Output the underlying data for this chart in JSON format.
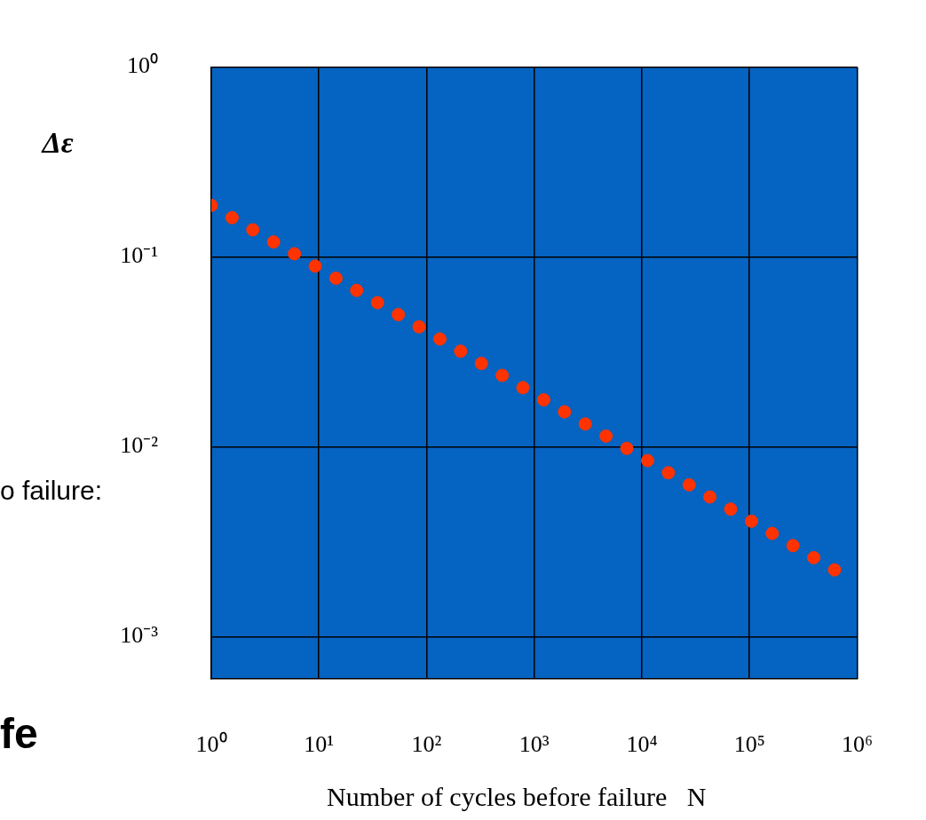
{
  "chart_data": {
    "type": "scatter",
    "xlabel": "Number of cycles before failure   N",
    "ylabel": "Δε",
    "log": "xy",
    "grid": true,
    "legend": false,
    "marker": "circle",
    "xlim": [
      1,
      1000000
    ],
    "ylim": [
      0.00063,
      1
    ],
    "xticks": [
      {
        "value": 1,
        "label": "10⁰"
      },
      {
        "value": 10,
        "label": "10¹"
      },
      {
        "value": 100,
        "label": "10²"
      },
      {
        "value": 1000,
        "label": "10³"
      },
      {
        "value": 10000,
        "label": "10⁴"
      },
      {
        "value": 100000,
        "label": "10⁵"
      },
      {
        "value": 1000000,
        "label": "10⁶"
      }
    ],
    "yticks": [
      {
        "value": 1,
        "label": "10⁰"
      },
      {
        "value": 0.1,
        "label": "10⁻¹"
      },
      {
        "value": 0.01,
        "label": "10⁻²"
      },
      {
        "value": 0.001,
        "label": "10⁻³"
      }
    ],
    "annotations": [
      "o failure:",
      "fe"
    ],
    "series": [
      {
        "color": "#ff3300",
        "x": [
          1,
          1.56,
          2.43,
          3.79,
          5.92,
          9.23,
          14.4,
          22.4,
          35,
          54.6,
          85.1,
          133,
          207,
          323,
          504,
          785,
          1225,
          1910,
          2979,
          4645,
          7244,
          11298,
          17620,
          27480,
          42855,
          66834,
          104232,
          162555,
          253513,
          395367,
          616595
        ],
        "values": [
          0.187,
          0.161,
          0.139,
          0.12,
          0.104,
          0.0895,
          0.0773,
          0.0667,
          0.0575,
          0.0497,
          0.0429,
          0.037,
          0.0319,
          0.0275,
          0.0238,
          0.0205,
          0.0177,
          0.0153,
          0.0132,
          0.0114,
          0.00982,
          0.00847,
          0.00731,
          0.00631,
          0.00545,
          0.0047,
          0.00406,
          0.0035,
          0.00302,
          0.00261,
          0.00225
        ]
      }
    ]
  }
}
